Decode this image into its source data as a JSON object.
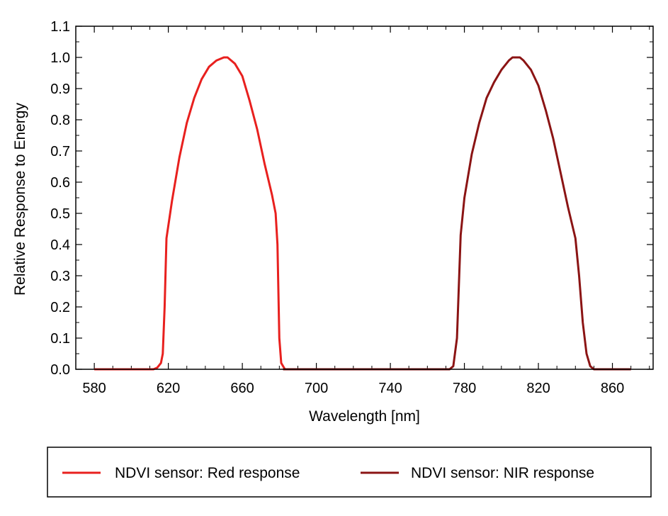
{
  "chart_data": {
    "type": "line",
    "xlabel": "Wavelength [nm]",
    "ylabel": "Relative Response to Energy",
    "xlim": [
      570,
      882
    ],
    "ylim": [
      0.0,
      1.1
    ],
    "x_ticks": [
      580,
      620,
      660,
      700,
      740,
      780,
      820,
      860
    ],
    "y_ticks": [
      "0.0",
      "0.1",
      "0.2",
      "0.3",
      "0.4",
      "0.5",
      "0.6",
      "0.7",
      "0.8",
      "0.9",
      "1.0",
      "1.1"
    ],
    "grid": false,
    "legend_position": "bottom",
    "series": [
      {
        "name": "NDVI sensor: Red response",
        "color": "#e8201e",
        "points": [
          [
            580,
            0.0
          ],
          [
            612,
            0.0
          ],
          [
            614,
            0.005
          ],
          [
            616,
            0.02
          ],
          [
            617,
            0.05
          ],
          [
            618,
            0.2
          ],
          [
            619,
            0.42
          ],
          [
            622,
            0.54
          ],
          [
            626,
            0.68
          ],
          [
            630,
            0.79
          ],
          [
            634,
            0.87
          ],
          [
            638,
            0.93
          ],
          [
            642,
            0.97
          ],
          [
            646,
            0.99
          ],
          [
            650,
            1.0
          ],
          [
            652,
            1.0
          ],
          [
            654,
            0.99
          ],
          [
            656,
            0.98
          ],
          [
            660,
            0.94
          ],
          [
            664,
            0.86
          ],
          [
            668,
            0.77
          ],
          [
            672,
            0.66
          ],
          [
            676,
            0.56
          ],
          [
            678,
            0.5
          ],
          [
            679,
            0.4
          ],
          [
            680,
            0.1
          ],
          [
            681,
            0.02
          ],
          [
            683,
            0.0
          ],
          [
            772,
            0.0
          ]
        ]
      },
      {
        "name": "NDVI sensor: NIR response",
        "color": "#8b1414",
        "points": [
          [
            682,
            0.0
          ],
          [
            772,
            0.0
          ],
          [
            774,
            0.01
          ],
          [
            776,
            0.1
          ],
          [
            778,
            0.43
          ],
          [
            780,
            0.55
          ],
          [
            784,
            0.69
          ],
          [
            788,
            0.79
          ],
          [
            792,
            0.87
          ],
          [
            796,
            0.92
          ],
          [
            800,
            0.96
          ],
          [
            804,
            0.99
          ],
          [
            806,
            1.0
          ],
          [
            808,
            1.0
          ],
          [
            810,
            1.0
          ],
          [
            812,
            0.99
          ],
          [
            816,
            0.96
          ],
          [
            820,
            0.91
          ],
          [
            824,
            0.83
          ],
          [
            828,
            0.74
          ],
          [
            832,
            0.63
          ],
          [
            836,
            0.52
          ],
          [
            840,
            0.42
          ],
          [
            842,
            0.3
          ],
          [
            844,
            0.15
          ],
          [
            846,
            0.05
          ],
          [
            848,
            0.01
          ],
          [
            850,
            0.0
          ],
          [
            870,
            0.0
          ]
        ]
      }
    ]
  }
}
